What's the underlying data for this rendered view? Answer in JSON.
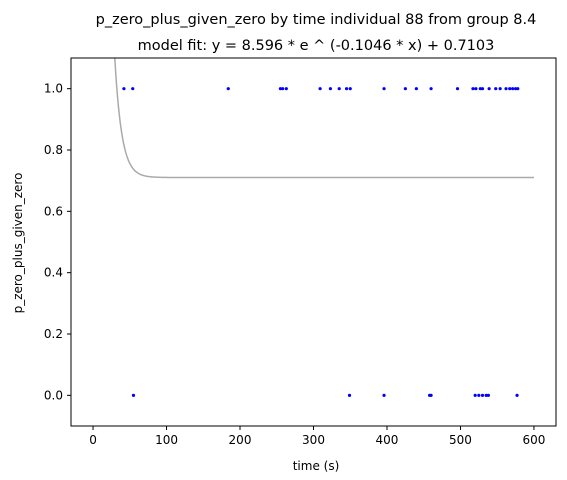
{
  "chart_data": {
    "type": "scatter",
    "title": "p_zero_plus_given_zero by time individual 88 from group 8.4",
    "subtitle": "model fit: y = 8.596 * e ^ (-0.1046 * x) + 0.7103",
    "xlabel": "time (s)",
    "ylabel": "p_zero_plus_given_zero",
    "xlim": [
      -30,
      630
    ],
    "ylim": [
      -0.1,
      1.1
    ],
    "xticks": [
      0,
      100,
      200,
      300,
      400,
      500,
      600
    ],
    "yticks": [
      0.0,
      0.2,
      0.4,
      0.6,
      0.8,
      1.0
    ],
    "xtick_labels": [
      "0",
      "100",
      "200",
      "300",
      "400",
      "500",
      "600"
    ],
    "ytick_labels": [
      "0.0",
      "0.2",
      "0.4",
      "0.6",
      "0.8",
      "1.0"
    ],
    "grid": false,
    "points_color": "#0000ff",
    "fit_color": "#aaaaaa",
    "series": [
      {
        "x": [
          42,
          54,
          184,
          255,
          258,
          263,
          309,
          323,
          335,
          345,
          350,
          396,
          425,
          440,
          460,
          496,
          517,
          521,
          527,
          530,
          539,
          548,
          554,
          562,
          567,
          571,
          575,
          578,
          55,
          349,
          396,
          458,
          460,
          520,
          525,
          530,
          535,
          538,
          577
        ],
        "y": [
          1,
          1,
          1,
          1,
          1,
          1,
          1,
          1,
          1,
          1,
          1,
          1,
          1,
          1,
          1,
          1,
          1,
          1,
          1,
          1,
          1,
          1,
          1,
          1,
          1,
          1,
          1,
          1,
          0,
          0,
          0,
          0,
          0,
          0,
          0,
          0,
          0,
          0,
          0
        ]
      }
    ],
    "fit": {
      "a": 8.596,
      "b": -0.1046,
      "c": 0.7103,
      "x_range": [
        0,
        600
      ]
    }
  }
}
